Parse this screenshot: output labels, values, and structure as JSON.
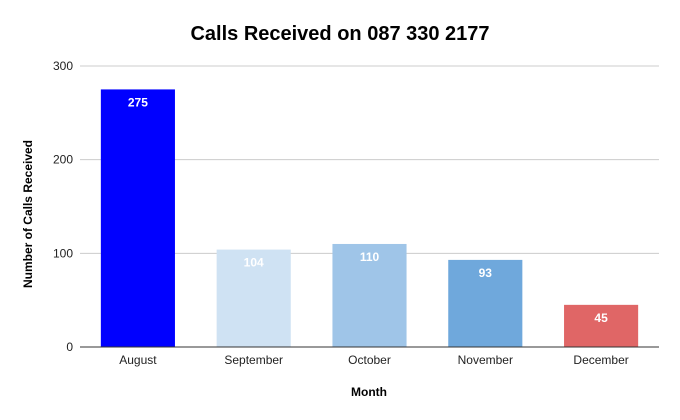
{
  "chart_data": {
    "type": "bar",
    "title": "Calls Received on 087 330 2177",
    "xlabel": "Month",
    "ylabel": "Number of Calls Received",
    "categories": [
      "August",
      "September",
      "October",
      "November",
      "December"
    ],
    "values": [
      275,
      104,
      110,
      93,
      45
    ],
    "colors": [
      "#0000ff",
      "#cfe2f3",
      "#9fc5e8",
      "#6fa8dc",
      "#e06666"
    ],
    "ylim": [
      0,
      300
    ],
    "yticks": [
      "0",
      "100",
      "200",
      "300"
    ],
    "grid": true,
    "legend": "none"
  }
}
